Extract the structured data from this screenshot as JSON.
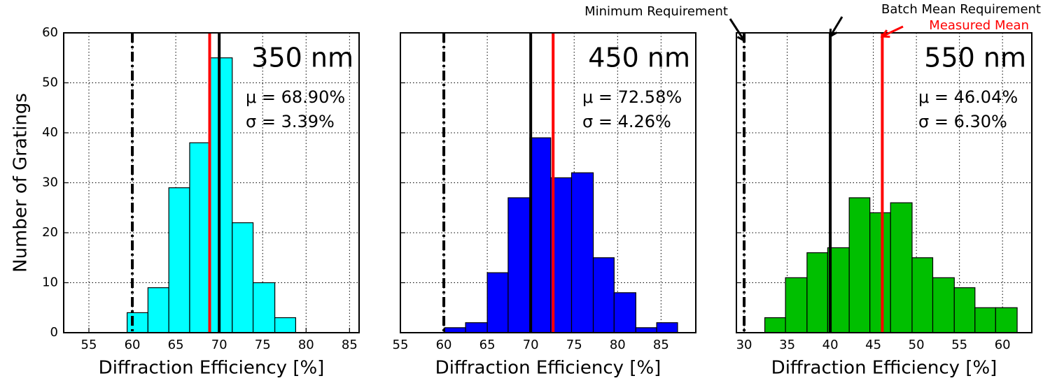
{
  "chart_data": [
    {
      "type": "histogram",
      "label": "350 nm",
      "stats": [
        "μ = 68.90%",
        "σ = 3.39%"
      ],
      "xlabel": "Diffraction Efficiency [%]",
      "ylabel": "Number of Gratings",
      "ytick_labels": true,
      "color": "#00ffff",
      "bins": [
        59.4,
        61.8,
        64.2,
        66.6,
        69.0,
        71.5,
        73.9,
        76.4,
        78.8
      ],
      "counts": [
        4,
        9,
        29,
        38,
        55,
        22,
        10,
        3
      ],
      "lines": [
        {
          "value": 60,
          "style": "dashdot",
          "color": "#000000"
        },
        {
          "value": 68.9,
          "style": "solid",
          "color": "#ff0000"
        },
        {
          "value": 70,
          "style": "solid",
          "color": "#000000"
        }
      ],
      "xlim": [
        52.1,
        86.1
      ],
      "xticks": [
        55,
        60,
        65,
        70,
        75,
        80,
        85
      ],
      "ylim": [
        0,
        60
      ],
      "yticks": [
        0,
        10,
        20,
        30,
        40,
        50,
        60
      ],
      "grid": true
    },
    {
      "type": "histogram",
      "label": "450 nm",
      "stats": [
        "μ = 72.58%",
        "σ = 4.26%"
      ],
      "xlabel": "Diffraction Efficiency [%]",
      "ytick_labels": false,
      "color": "#0000ff",
      "bins": [
        60.1,
        62.5,
        65.0,
        67.4,
        69.9,
        72.3,
        74.7,
        77.2,
        79.6,
        82.1,
        84.5,
        86.9
      ],
      "counts": [
        1,
        2,
        12,
        27,
        39,
        31,
        32,
        15,
        8,
        1,
        2
      ],
      "lines": [
        {
          "value": 60,
          "style": "dashdot",
          "color": "#000000"
        },
        {
          "value": 70,
          "style": "solid",
          "color": "#000000"
        },
        {
          "value": 72.58,
          "style": "solid",
          "color": "#ff0000"
        }
      ],
      "xlim": [
        55,
        89
      ],
      "xticks": [
        55,
        60,
        65,
        70,
        75,
        80,
        85
      ],
      "ylim": [
        0,
        60
      ],
      "yticks": [
        0,
        10,
        20,
        30,
        40,
        50,
        60
      ],
      "grid": true
    },
    {
      "type": "histogram",
      "label": "550 nm",
      "stats": [
        "μ = 46.04%",
        "σ = 6.30%"
      ],
      "xlabel": "Diffraction Efficiency [%]",
      "ytick_labels": false,
      "color": "#00bf00",
      "bins": [
        32.4,
        34.8,
        37.3,
        39.7,
        42.2,
        44.6,
        47.0,
        49.5,
        51.9,
        54.4,
        56.8,
        59.2,
        61.7
      ],
      "counts": [
        3,
        11,
        16,
        17,
        27,
        24,
        26,
        15,
        11,
        9,
        5,
        5
      ],
      "lines": [
        {
          "value": 30,
          "style": "dashdot",
          "color": "#000000"
        },
        {
          "value": 40,
          "style": "solid",
          "color": "#000000"
        },
        {
          "value": 46.04,
          "style": "solid",
          "color": "#ff0000"
        }
      ],
      "annotations": [
        {
          "text": "Minimum Requirement",
          "x": 30,
          "color": "#000000"
        },
        {
          "text": "Batch Mean Requirement",
          "x": 40,
          "color": "#000000"
        },
        {
          "text": "Measured Mean",
          "x": 46.04,
          "color": "#ff0000"
        }
      ],
      "xlim": [
        29.1,
        63.4
      ],
      "xticks": [
        30,
        35,
        40,
        45,
        50,
        55,
        60
      ],
      "ylim": [
        0,
        60
      ],
      "yticks": [
        0,
        10,
        20,
        30,
        40,
        50,
        60
      ],
      "grid": true
    }
  ]
}
